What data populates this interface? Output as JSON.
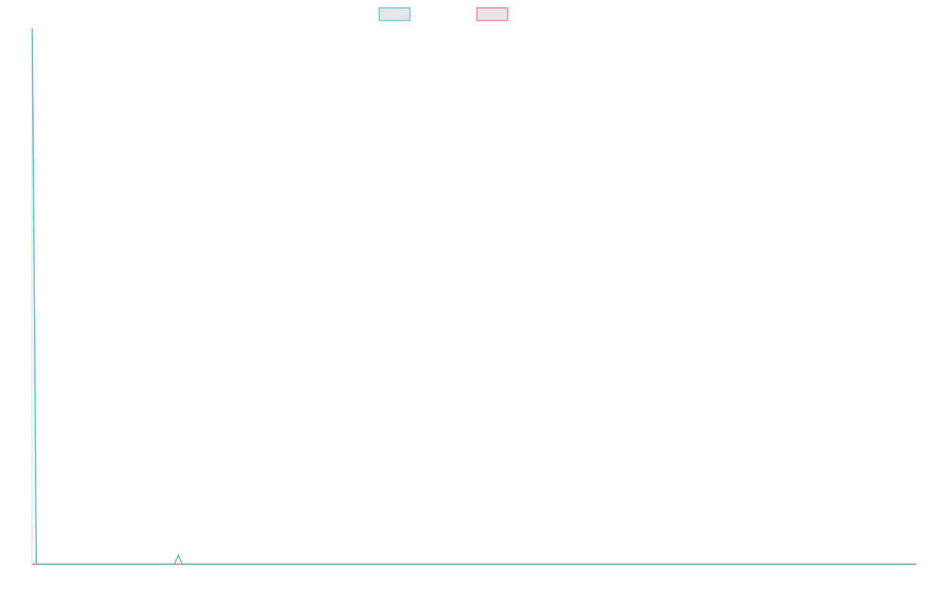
{
  "chart_data": {
    "type": "line",
    "title": "",
    "xlabel": "",
    "ylabel": "",
    "grid": false,
    "legend_placement": "top",
    "ylim": [
      0,
      100
    ],
    "series": [
      {
        "color": "#4bc0c0",
        "legend_fill": "#e6e6e6",
        "values": [
          100,
          0,
          0,
          0,
          0,
          0,
          0,
          0,
          0,
          0,
          0,
          0,
          0,
          0,
          0,
          0,
          0,
          0,
          0,
          0,
          0,
          0,
          0,
          0,
          0,
          0,
          0,
          0,
          0,
          0,
          0,
          0,
          0,
          0,
          0,
          0,
          0,
          1.7,
          0,
          0,
          0,
          0,
          0,
          0,
          0,
          0,
          0,
          0,
          0,
          0,
          0,
          0,
          0,
          0,
          0,
          0,
          0,
          0,
          0,
          0,
          0,
          0,
          0,
          0,
          0,
          0,
          0,
          0,
          0,
          0,
          0,
          0,
          0,
          0,
          0,
          0,
          0,
          0,
          0,
          0,
          0,
          0,
          0,
          0,
          0,
          0,
          0,
          0,
          0,
          0,
          0,
          0,
          0,
          0,
          0,
          0,
          0,
          0,
          0,
          0,
          0,
          0,
          0,
          0,
          0,
          0,
          0,
          0,
          0,
          0,
          0,
          0,
          0,
          0,
          0,
          0,
          0,
          0,
          0,
          0,
          0,
          0,
          0,
          0,
          0,
          0,
          0,
          0,
          0,
          0,
          0,
          0,
          0,
          0,
          0,
          0,
          0,
          0,
          0,
          0,
          0,
          0,
          0,
          0,
          0,
          0,
          0,
          0,
          0,
          0,
          0,
          0,
          0,
          0,
          0,
          0,
          0,
          0,
          0,
          0,
          0,
          0,
          0,
          0,
          0,
          0,
          0,
          0,
          0,
          0,
          0,
          0,
          0,
          0,
          0,
          0,
          0,
          0,
          0,
          0,
          0,
          0,
          0,
          0,
          0,
          0,
          0,
          0,
          0,
          0,
          0,
          0,
          0,
          0,
          0,
          0,
          0,
          0,
          0,
          0,
          0,
          0,
          0,
          0,
          0,
          0,
          0,
          0,
          0,
          0,
          0,
          0,
          0,
          0,
          0,
          0,
          0,
          0,
          0,
          0,
          0,
          0,
          0,
          0,
          0
        ]
      },
      {
        "color": "#ff6384",
        "legend_fill": "#e6e6e6",
        "values": [
          0,
          0,
          0,
          0,
          0,
          0,
          0,
          0,
          0,
          0,
          0,
          0,
          0,
          0,
          0,
          0,
          0,
          0,
          0,
          0,
          0,
          0,
          0,
          0,
          0,
          0,
          0,
          0,
          0,
          0,
          0,
          0,
          0,
          0,
          0,
          0,
          0,
          0,
          0,
          0,
          0,
          0,
          0,
          0,
          0,
          0,
          0,
          0,
          0,
          0,
          0,
          0,
          0,
          0,
          0,
          0,
          0,
          0,
          0,
          0,
          0,
          0,
          0,
          0,
          0,
          0,
          0,
          0,
          0,
          0,
          0,
          0,
          0,
          0,
          0,
          0,
          0,
          0,
          0,
          0,
          0,
          0,
          0,
          0,
          0,
          0,
          0,
          0,
          0,
          0,
          0,
          0,
          0,
          0,
          0,
          0,
          0,
          0,
          0,
          0,
          0,
          0,
          0,
          0,
          0,
          0,
          0,
          0,
          0,
          0,
          0,
          0,
          0,
          0,
          0,
          0,
          0,
          0,
          0,
          0,
          0,
          0,
          0,
          0,
          0,
          0,
          0,
          0,
          0,
          0,
          0,
          0,
          0,
          0,
          0,
          0,
          0,
          0,
          0,
          0,
          0,
          0,
          0,
          0,
          0,
          0,
          0,
          0,
          0,
          0,
          0,
          0,
          0,
          0,
          0,
          0,
          0,
          0,
          0,
          0,
          0,
          0,
          0,
          0,
          0,
          0,
          0,
          0,
          0,
          0,
          0,
          0,
          0,
          0,
          0,
          0,
          0,
          0,
          0,
          0,
          0,
          0,
          0,
          0,
          0,
          0,
          0,
          0,
          0,
          0,
          0,
          0,
          0,
          0,
          0,
          0,
          0,
          0,
          0,
          0,
          0,
          0,
          0,
          0,
          0,
          0,
          0,
          0,
          0,
          0,
          0,
          0,
          0,
          0,
          0,
          0,
          0,
          0,
          0,
          0,
          0,
          0,
          0,
          0,
          0
        ]
      }
    ]
  }
}
